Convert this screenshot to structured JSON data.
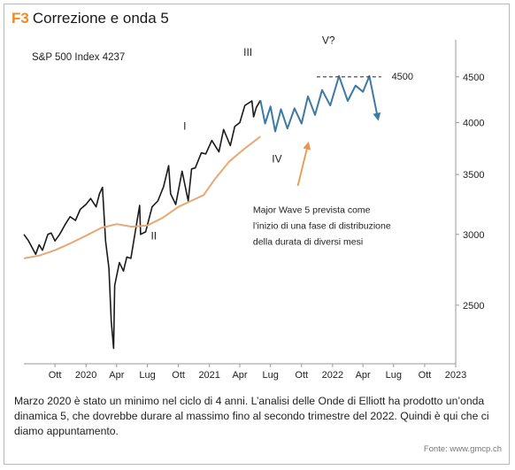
{
  "figure": {
    "label": "F3",
    "title": "Correzione e onda 5",
    "caption": "Marzo 2020 è stato un minimo nel ciclo di 4 anni. L’analisi delle Onde di Elliott ha prodotto un’onda dinamica 5, che dovrebbe durare al massimo fino al secondo trimestre del 2022. Quindi è qui che ci diamo appuntamento.",
    "source": "Fonte: www.gmcp.ch"
  },
  "colors": {
    "price": "#1a1a1a",
    "moving_average": "#e8a872",
    "projection": "#3c7aa3",
    "arrow_orange": "#f0954e",
    "axis": "#9a9a9a",
    "label_bg": "#f5c9a0"
  },
  "chart_data": {
    "type": "line",
    "title": "S&P 500 Index 4237",
    "xlabel": "",
    "ylabel": "",
    "y_scale": "log",
    "ylim": [
      2150,
      4950
    ],
    "yticks": [
      2500,
      3000,
      3500,
      4000,
      4500
    ],
    "grid": false,
    "x_ticks": [
      "Ott",
      "2020",
      "Apr",
      "Lug",
      "Ott",
      "2021",
      "Apr",
      "Lug",
      "Ott",
      "2022",
      "Apr",
      "Lug",
      "Ott",
      "2023"
    ],
    "x_tick_dates": [
      "2019-10-01",
      "2020-01-01",
      "2020-04-01",
      "2020-07-01",
      "2020-10-01",
      "2021-01-01",
      "2021-04-01",
      "2021-07-01",
      "2021-10-01",
      "2022-01-01",
      "2022-04-01",
      "2022-07-01",
      "2022-10-01",
      "2023-01-01"
    ],
    "series": [
      {
        "role": "price",
        "style": "solid-black",
        "x": [
          "2019-07-01",
          "2019-07-15",
          "2019-08-05",
          "2019-08-15",
          "2019-08-25",
          "2019-09-10",
          "2019-09-20",
          "2019-10-01",
          "2019-10-15",
          "2019-11-01",
          "2019-11-15",
          "2019-12-01",
          "2019-12-15",
          "2020-01-01",
          "2020-01-15",
          "2020-01-31",
          "2020-02-10",
          "2020-02-19",
          "2020-02-28",
          "2020-03-09",
          "2020-03-16",
          "2020-03-23",
          "2020-03-26",
          "2020-04-09",
          "2020-04-21",
          "2020-05-01",
          "2020-05-13",
          "2020-06-08",
          "2020-06-11",
          "2020-06-26",
          "2020-07-15",
          "2020-08-01",
          "2020-08-18",
          "2020-09-02",
          "2020-09-08",
          "2020-09-23",
          "2020-10-12",
          "2020-10-30",
          "2020-11-09",
          "2020-11-20",
          "2020-12-08",
          "2020-12-21",
          "2021-01-08",
          "2021-01-29",
          "2021-02-12",
          "2021-03-04",
          "2021-03-17",
          "2021-04-01",
          "2021-04-16",
          "2021-05-07",
          "2021-05-12",
          "2021-05-20",
          "2021-06-01"
        ],
        "y": [
          3000,
          2950,
          2850,
          2920,
          2880,
          3000,
          3010,
          2950,
          3000,
          3080,
          3140,
          3110,
          3200,
          3240,
          3290,
          3220,
          3330,
          3386,
          2950,
          2750,
          2400,
          2237,
          2630,
          2790,
          2730,
          2830,
          2820,
          3232,
          3000,
          3020,
          3220,
          3270,
          3390,
          3580,
          3330,
          3240,
          3530,
          3270,
          3550,
          3560,
          3700,
          3690,
          3820,
          3710,
          3930,
          3770,
          3960,
          4000,
          4180,
          4230,
          4060,
          4160,
          4237
        ]
      },
      {
        "role": "moving_average",
        "style": "solid-orange",
        "x": [
          "2019-07-01",
          "2019-08-15",
          "2019-10-01",
          "2019-11-15",
          "2020-01-01",
          "2020-02-15",
          "2020-04-01",
          "2020-05-15",
          "2020-07-01",
          "2020-08-15",
          "2020-10-01",
          "2020-11-15",
          "2020-12-15",
          "2021-01-15",
          "2021-03-01",
          "2021-04-15",
          "2021-06-01"
        ],
        "y": [
          2820,
          2840,
          2880,
          2930,
          2990,
          3050,
          3080,
          3060,
          3070,
          3130,
          3220,
          3280,
          3320,
          3450,
          3620,
          3740,
          3860
        ]
      },
      {
        "role": "projection",
        "style": "zigzag-blue",
        "x": [
          "2021-06-01",
          "2021-06-15",
          "2021-07-01",
          "2021-07-15",
          "2021-08-01",
          "2021-08-20",
          "2021-09-10",
          "2021-10-01",
          "2021-10-20",
          "2021-11-10",
          "2021-12-01",
          "2021-12-25",
          "2022-01-20",
          "2022-02-15",
          "2022-03-10",
          "2022-04-01",
          "2022-04-20",
          "2022-05-15"
        ],
        "y": [
          4237,
          3990,
          4170,
          3910,
          4140,
          3940,
          4150,
          3990,
          4280,
          4080,
          4350,
          4180,
          4510,
          4230,
          4400,
          4330,
          4510,
          4050
        ]
      }
    ],
    "reference_line": {
      "value": 4500,
      "label": "4500",
      "style": "dashed"
    },
    "annotations": [
      {
        "id": "wave-1",
        "text": "I",
        "x": "2020-10-20",
        "y": 3930
      },
      {
        "id": "wave-2",
        "text": "II",
        "x": "2020-07-20",
        "y": 2960
      },
      {
        "id": "wave-3",
        "text": "III",
        "x": "2021-04-25",
        "y": 4750
      },
      {
        "id": "wave-4",
        "text": "IV",
        "x": "2021-07-20",
        "y": 3610
      },
      {
        "id": "wave-5",
        "text": "V?",
        "x": "2021-12-20",
        "y": 4900
      }
    ],
    "note": {
      "lines": [
        "Major Wave 5 prevista come",
        "l’inizio di una fase di distribuzione",
        "della durata di diversi mesi"
      ],
      "x": "2021-05-10",
      "y": 3170
    },
    "note_arrow": {
      "from": [
        "2021-09-20",
        3400
      ],
      "to": [
        "2021-10-20",
        3780
      ]
    }
  }
}
